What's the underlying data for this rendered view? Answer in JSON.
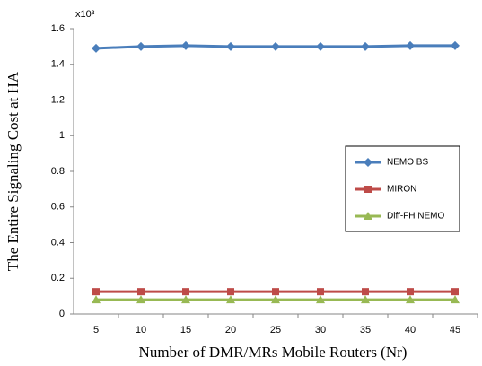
{
  "chart_data": {
    "type": "line",
    "x_label": "Number of DMR/MRs Mobile Routers (Nr)",
    "y_label": "The Entire Signaling Cost at HA",
    "annotation": "x10³",
    "categories": [
      "5",
      "10",
      "15",
      "20",
      "25",
      "30",
      "35",
      "40",
      "45"
    ],
    "series": [
      {
        "name": "NEMO BS",
        "color": "#4a7ebb",
        "marker": "diamond",
        "values": [
          1.49,
          1.5,
          1.505,
          1.5,
          1.5,
          1.5,
          1.5,
          1.505,
          1.505
        ]
      },
      {
        "name": "MIRON",
        "color": "#be4b48",
        "marker": "square",
        "values": [
          0.125,
          0.125,
          0.125,
          0.125,
          0.125,
          0.125,
          0.125,
          0.125,
          0.125
        ]
      },
      {
        "name": "Diff-FH NEMO",
        "color": "#98b954",
        "marker": "triangle",
        "values": [
          0.08,
          0.08,
          0.08,
          0.08,
          0.08,
          0.08,
          0.08,
          0.08,
          0.08
        ]
      }
    ],
    "ylim": [
      0,
      1.6
    ],
    "yticks": [
      0,
      0.2,
      0.4,
      0.6,
      0.8,
      1,
      1.2,
      1.4,
      1.6
    ],
    "grid": false,
    "legend": "right"
  }
}
